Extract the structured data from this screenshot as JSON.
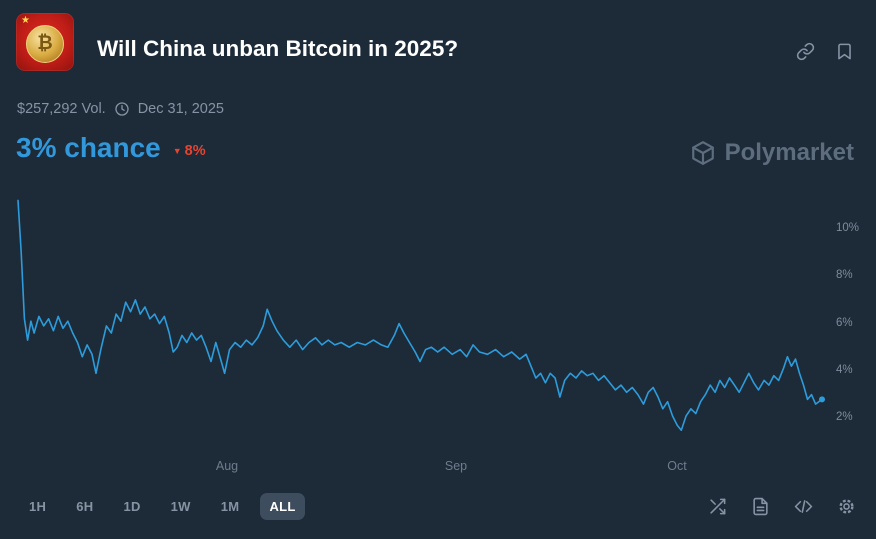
{
  "header": {
    "title": "Will China unban Bitcoin in 2025?",
    "volume": "$257,292 Vol.",
    "end_date": "Dec 31, 2025"
  },
  "chance": {
    "value": "3% chance",
    "change_arrow": "▼",
    "change": "8%",
    "direction": "down"
  },
  "watermark": "Polymarket",
  "icons": {
    "copy-link": "chain-link",
    "bookmark": "bookmark-outline",
    "clock": "clock-outline",
    "down-arrow": "▼",
    "compare": "shuffle-arrows",
    "news": "document-lines",
    "embed": "code-brackets",
    "settings": "gear"
  },
  "colors": {
    "background": "#1d2b39",
    "accent_blue": "#3298dc",
    "line_blue": "#2d9cdb",
    "negative_red": "#e8432f",
    "text_primary": "#ffffff",
    "text_muted": "#8593a3",
    "selected_pill": "#3d4d5d"
  },
  "timeframes": {
    "options": [
      "1H",
      "6H",
      "1D",
      "1W",
      "1M",
      "ALL"
    ],
    "selected": "ALL"
  },
  "chart_data": {
    "type": "line",
    "title": "",
    "xlabel": "",
    "ylabel": "",
    "grid": false,
    "legend": false,
    "line_color": "#2d9cdb",
    "ylim": [
      1,
      11.3
    ],
    "y_ticks": [
      10,
      8,
      6,
      4,
      2
    ],
    "y_tick_labels": [
      "10%",
      "8%",
      "6%",
      "4%",
      "2%"
    ],
    "x_ticks": [
      {
        "label": "Aug",
        "pos": 0.26
      },
      {
        "label": "Sep",
        "pos": 0.545
      },
      {
        "label": "Oct",
        "pos": 0.82
      }
    ],
    "points": [
      [
        0,
        11.2
      ],
      [
        0.004,
        9.0
      ],
      [
        0.008,
        6.2
      ],
      [
        0.012,
        5.3
      ],
      [
        0.016,
        6.1
      ],
      [
        0.02,
        5.6
      ],
      [
        0.026,
        6.3
      ],
      [
        0.032,
        5.9
      ],
      [
        0.038,
        6.2
      ],
      [
        0.044,
        5.7
      ],
      [
        0.05,
        6.3
      ],
      [
        0.056,
        5.8
      ],
      [
        0.062,
        6.1
      ],
      [
        0.068,
        5.6
      ],
      [
        0.074,
        5.2
      ],
      [
        0.08,
        4.6
      ],
      [
        0.086,
        5.1
      ],
      [
        0.092,
        4.7
      ],
      [
        0.097,
        3.9
      ],
      [
        0.103,
        4.9
      ],
      [
        0.11,
        5.9
      ],
      [
        0.116,
        5.6
      ],
      [
        0.122,
        6.4
      ],
      [
        0.128,
        6.1
      ],
      [
        0.134,
        6.9
      ],
      [
        0.14,
        6.5
      ],
      [
        0.146,
        7.0
      ],
      [
        0.152,
        6.4
      ],
      [
        0.158,
        6.7
      ],
      [
        0.164,
        6.2
      ],
      [
        0.17,
        6.4
      ],
      [
        0.176,
        6.0
      ],
      [
        0.182,
        6.3
      ],
      [
        0.188,
        5.6
      ],
      [
        0.193,
        4.8
      ],
      [
        0.198,
        5.0
      ],
      [
        0.204,
        5.5
      ],
      [
        0.21,
        5.2
      ],
      [
        0.216,
        5.6
      ],
      [
        0.222,
        5.3
      ],
      [
        0.228,
        5.5
      ],
      [
        0.234,
        5.0
      ],
      [
        0.24,
        4.4
      ],
      [
        0.246,
        5.2
      ],
      [
        0.252,
        4.5
      ],
      [
        0.257,
        3.9
      ],
      [
        0.263,
        4.9
      ],
      [
        0.27,
        5.2
      ],
      [
        0.277,
        5.0
      ],
      [
        0.284,
        5.3
      ],
      [
        0.291,
        5.1
      ],
      [
        0.298,
        5.4
      ],
      [
        0.305,
        5.9
      ],
      [
        0.31,
        6.6
      ],
      [
        0.316,
        6.1
      ],
      [
        0.322,
        5.7
      ],
      [
        0.33,
        5.3
      ],
      [
        0.338,
        5.0
      ],
      [
        0.346,
        5.3
      ],
      [
        0.354,
        4.9
      ],
      [
        0.362,
        5.2
      ],
      [
        0.37,
        5.4
      ],
      [
        0.378,
        5.1
      ],
      [
        0.386,
        5.3
      ],
      [
        0.394,
        5.1
      ],
      [
        0.402,
        5.2
      ],
      [
        0.412,
        5.0
      ],
      [
        0.422,
        5.2
      ],
      [
        0.432,
        5.1
      ],
      [
        0.442,
        5.3
      ],
      [
        0.452,
        5.1
      ],
      [
        0.46,
        5.0
      ],
      [
        0.468,
        5.5
      ],
      [
        0.474,
        6.0
      ],
      [
        0.48,
        5.6
      ],
      [
        0.487,
        5.2
      ],
      [
        0.494,
        4.8
      ],
      [
        0.5,
        4.4
      ],
      [
        0.507,
        4.9
      ],
      [
        0.514,
        5.0
      ],
      [
        0.522,
        4.8
      ],
      [
        0.53,
        5.0
      ],
      [
        0.54,
        4.7
      ],
      [
        0.55,
        4.9
      ],
      [
        0.558,
        4.6
      ],
      [
        0.566,
        5.1
      ],
      [
        0.574,
        4.8
      ],
      [
        0.584,
        4.7
      ],
      [
        0.594,
        4.9
      ],
      [
        0.604,
        4.6
      ],
      [
        0.614,
        4.8
      ],
      [
        0.624,
        4.5
      ],
      [
        0.632,
        4.7
      ],
      [
        0.638,
        4.2
      ],
      [
        0.644,
        3.7
      ],
      [
        0.65,
        3.9
      ],
      [
        0.656,
        3.5
      ],
      [
        0.662,
        3.9
      ],
      [
        0.668,
        3.7
      ],
      [
        0.674,
        2.9
      ],
      [
        0.68,
        3.6
      ],
      [
        0.687,
        3.9
      ],
      [
        0.694,
        3.7
      ],
      [
        0.701,
        4.0
      ],
      [
        0.708,
        3.8
      ],
      [
        0.715,
        3.9
      ],
      [
        0.722,
        3.6
      ],
      [
        0.729,
        3.8
      ],
      [
        0.736,
        3.5
      ],
      [
        0.743,
        3.2
      ],
      [
        0.75,
        3.4
      ],
      [
        0.757,
        3.1
      ],
      [
        0.764,
        3.3
      ],
      [
        0.771,
        3.0
      ],
      [
        0.778,
        2.6
      ],
      [
        0.784,
        3.1
      ],
      [
        0.79,
        3.3
      ],
      [
        0.796,
        2.9
      ],
      [
        0.802,
        2.4
      ],
      [
        0.808,
        2.7
      ],
      [
        0.814,
        2.1
      ],
      [
        0.82,
        1.7
      ],
      [
        0.825,
        1.5
      ],
      [
        0.831,
        2.1
      ],
      [
        0.837,
        2.4
      ],
      [
        0.843,
        2.2
      ],
      [
        0.849,
        2.7
      ],
      [
        0.855,
        3.0
      ],
      [
        0.861,
        3.4
      ],
      [
        0.867,
        3.1
      ],
      [
        0.873,
        3.6
      ],
      [
        0.879,
        3.3
      ],
      [
        0.885,
        3.7
      ],
      [
        0.891,
        3.4
      ],
      [
        0.897,
        3.1
      ],
      [
        0.903,
        3.5
      ],
      [
        0.909,
        3.9
      ],
      [
        0.915,
        3.5
      ],
      [
        0.921,
        3.2
      ],
      [
        0.928,
        3.6
      ],
      [
        0.934,
        3.4
      ],
      [
        0.94,
        3.8
      ],
      [
        0.946,
        3.6
      ],
      [
        0.952,
        4.1
      ],
      [
        0.957,
        4.6
      ],
      [
        0.962,
        4.2
      ],
      [
        0.967,
        4.5
      ],
      [
        0.972,
        3.9
      ],
      [
        0.977,
        3.4
      ],
      [
        0.982,
        2.8
      ],
      [
        0.987,
        3.0
      ],
      [
        0.992,
        2.6
      ],
      [
        1,
        2.8
      ]
    ]
  }
}
